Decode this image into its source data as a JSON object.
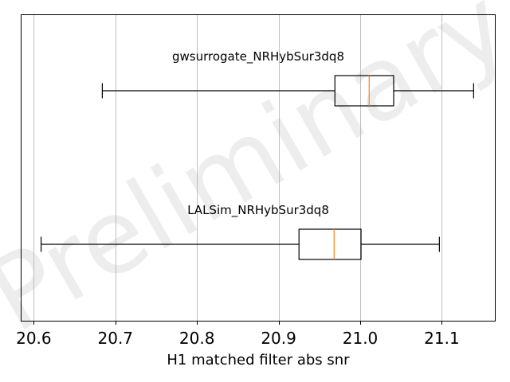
{
  "chart_data": {
    "type": "boxplot",
    "xlabel": "H1 matched filter abs snr",
    "xlim": [
      20.585,
      21.165
    ],
    "xticks": [
      20.6,
      20.7,
      20.8,
      20.9,
      21.0,
      21.1
    ],
    "xtick_labels": [
      "20.6",
      "20.7",
      "20.8",
      "20.9",
      "21.0",
      "21.1"
    ],
    "grid": "vertical",
    "orientation": "horizontal",
    "watermark": "Preliminary",
    "series": [
      {
        "name": "gwsurrogate_NRHybSur3dq8",
        "whisker_low": 20.684,
        "q1": 20.969,
        "median": 21.011,
        "q3": 21.041,
        "whisker_high": 21.139
      },
      {
        "name": "LALSim_NRHybSur3dq8",
        "whisker_low": 20.609,
        "q1": 20.925,
        "median": 20.968,
        "q3": 21.001,
        "whisker_high": 21.097
      }
    ],
    "colors": {
      "box": "#000000",
      "median": "#ff7f0e",
      "grid": "#b0b0b0",
      "frame": "#000000"
    }
  }
}
